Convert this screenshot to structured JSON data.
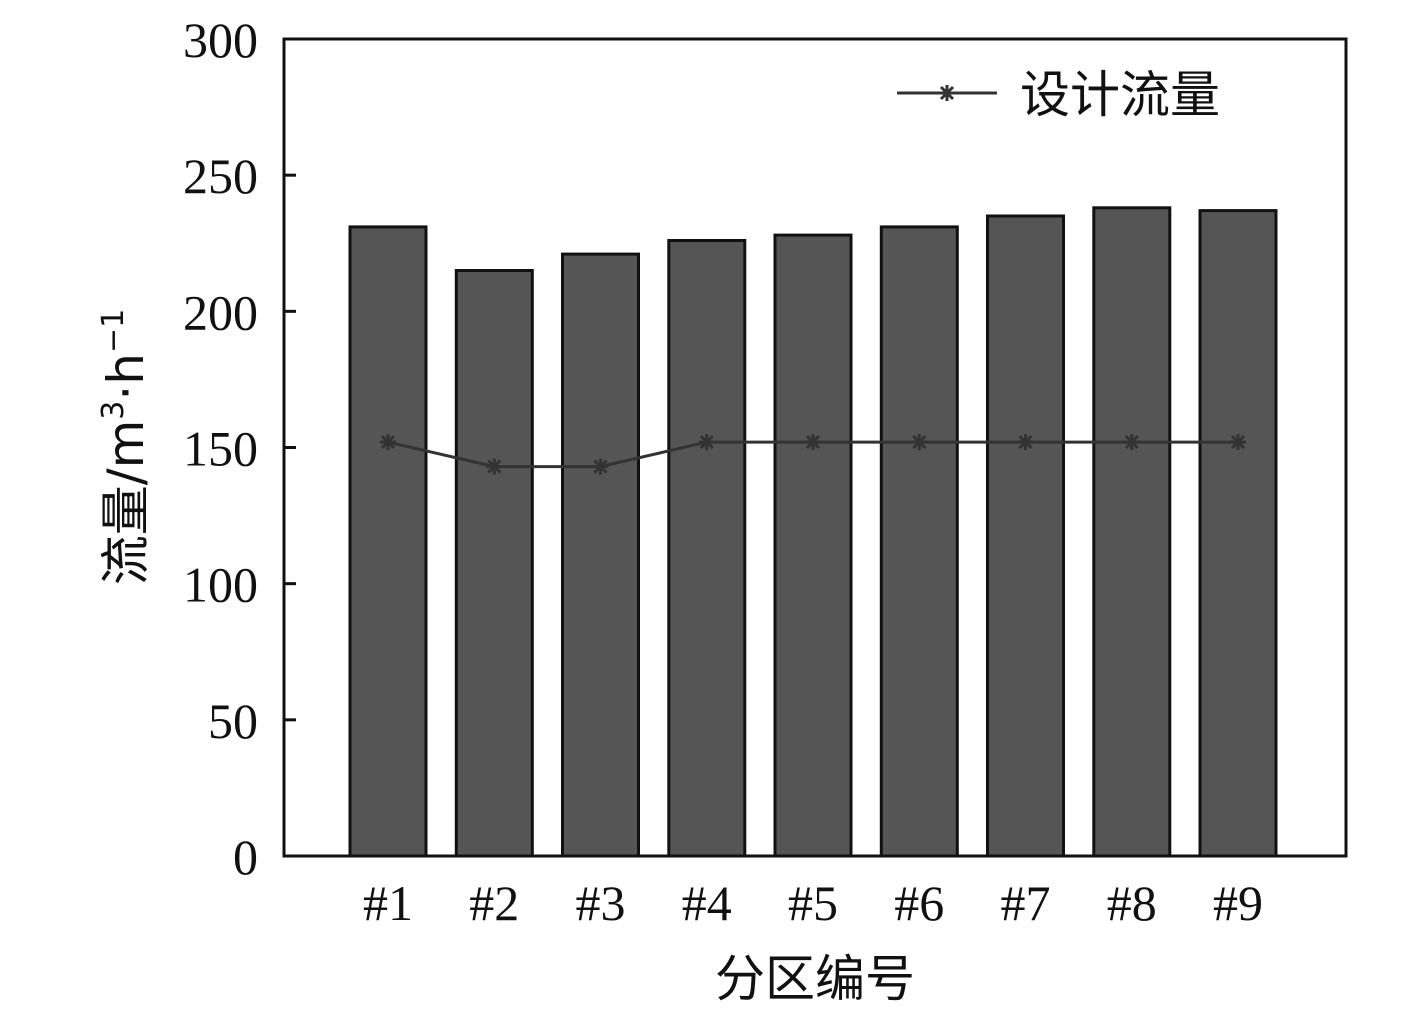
{
  "chart_data": {
    "type": "bar",
    "categories": [
      "#1",
      "#2",
      "#3",
      "#4",
      "#5",
      "#6",
      "#7",
      "#8",
      "#9"
    ],
    "series": [
      {
        "values": [
          231,
          215,
          221,
          226,
          228,
          231,
          235,
          238,
          237
        ],
        "color": "#555555"
      },
      {
        "name": "设计流量",
        "type": "line",
        "marker": "asterisk",
        "values": [
          152,
          143,
          143,
          152,
          152,
          152,
          152,
          152,
          152
        ],
        "color": "#333333"
      }
    ],
    "xlabel": "分区编号",
    "ylabel_parts": {
      "base": "流量/m",
      "sup1": "3",
      "mid": "·h",
      "sup2": "−1"
    },
    "ylim": [
      0,
      300
    ],
    "yticks": [
      "0",
      "50",
      "100",
      "150",
      "200",
      "250",
      "300"
    ],
    "grid": false,
    "legend_position": "top-right"
  }
}
